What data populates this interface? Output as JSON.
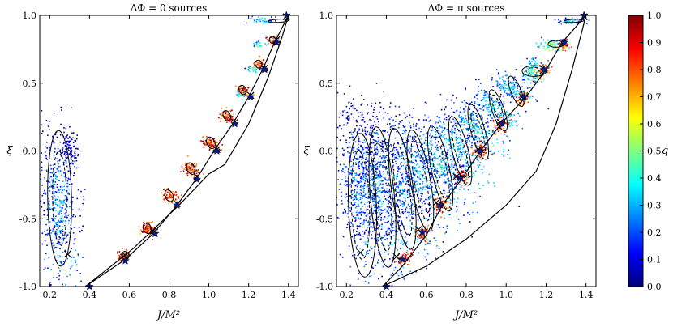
{
  "colormap": {
    "stops": [
      "#00007f",
      "#0000ff",
      "#007fff",
      "#00ffff",
      "#7fff7f",
      "#ffff00",
      "#ff7f00",
      "#ff0000",
      "#7f0000"
    ]
  },
  "chart_data": [
    {
      "type": "scatter",
      "title": "ΔΦ = 0 sources",
      "xlabel": "J/M²",
      "ylabel": "ξ",
      "xlim": [
        0.15,
        1.45
      ],
      "ylim": [
        -1.0,
        1.0
      ],
      "xticks": [
        "0.2",
        "0.4",
        "0.6",
        "0.8",
        "1.0",
        "1.2",
        "1.4"
      ],
      "yticks": [
        "-1.0",
        "-0.5",
        "0.0",
        "0.5",
        "1.0"
      ],
      "boundary_left": [
        [
          0.38,
          -1.0
        ],
        [
          0.62,
          -0.72
        ],
        [
          0.85,
          -0.4
        ],
        [
          1.0,
          -0.17
        ],
        [
          1.08,
          -0.1
        ],
        [
          1.2,
          0.2
        ],
        [
          1.3,
          0.55
        ],
        [
          1.37,
          0.85
        ],
        [
          1.4,
          1.0
        ]
      ],
      "boundary_right": [
        [
          0.38,
          -1.0
        ],
        [
          0.58,
          -0.8
        ],
        [
          0.72,
          -0.61
        ],
        [
          0.84,
          -0.4
        ],
        [
          0.94,
          -0.2
        ],
        [
          1.03,
          0.01
        ],
        [
          1.12,
          0.2
        ],
        [
          1.2,
          0.4
        ],
        [
          1.27,
          0.6
        ],
        [
          1.33,
          0.8
        ],
        [
          1.4,
          1.0
        ]
      ],
      "clusters": [
        {
          "x": 0.24,
          "y": -0.4,
          "sx": 0.05,
          "sy": 0.28,
          "q": 0.3,
          "n": 500,
          "tilt": 0.06,
          "mode": "broad"
        },
        {
          "x": 0.29,
          "y": 0.02,
          "sx": 0.025,
          "sy": 0.08,
          "q": 0.12,
          "n": 120,
          "tilt": 0.0,
          "mode": "broad"
        },
        {
          "x": 0.57,
          "y": -0.77,
          "sx": 0.015,
          "sy": 0.025,
          "q": 0.85,
          "n": 60,
          "tilt": 1.4,
          "mode": "tight"
        },
        {
          "x": 0.69,
          "y": -0.57,
          "sx": 0.015,
          "sy": 0.03,
          "q": 0.85,
          "n": 70,
          "tilt": 1.2,
          "mode": "tight"
        },
        {
          "x": 0.8,
          "y": -0.33,
          "sx": 0.016,
          "sy": 0.035,
          "q": 0.85,
          "n": 80,
          "tilt": 1.2,
          "mode": "tight"
        },
        {
          "x": 0.91,
          "y": -0.13,
          "sx": 0.016,
          "sy": 0.035,
          "q": 0.85,
          "n": 80,
          "tilt": 1.2,
          "mode": "tight"
        },
        {
          "x": 1.01,
          "y": 0.06,
          "sx": 0.015,
          "sy": 0.035,
          "q": 0.85,
          "n": 80,
          "tilt": 1.2,
          "mode": "tight"
        },
        {
          "x": 1.09,
          "y": 0.26,
          "sx": 0.014,
          "sy": 0.03,
          "q": 0.85,
          "n": 70,
          "tilt": 1.2,
          "mode": "tight"
        },
        {
          "x": 1.17,
          "y": 0.45,
          "sx": 0.013,
          "sy": 0.028,
          "q": 0.85,
          "n": 60,
          "tilt": 1.2,
          "mode": "tight"
        },
        {
          "x": 1.25,
          "y": 0.64,
          "sx": 0.013,
          "sy": 0.025,
          "q": 0.85,
          "n": 50,
          "tilt": 1.2,
          "mode": "tight"
        },
        {
          "x": 1.32,
          "y": 0.82,
          "sx": 0.012,
          "sy": 0.02,
          "q": 0.85,
          "n": 40,
          "tilt": 1.2,
          "mode": "tight"
        },
        {
          "x": 1.26,
          "y": 0.97,
          "sx": 0.03,
          "sy": 0.012,
          "q": 0.4,
          "n": 40,
          "tilt": 0.0,
          "mode": "broad"
        },
        {
          "x": 1.25,
          "y": 0.79,
          "sx": 0.015,
          "sy": 0.012,
          "q": 0.5,
          "n": 25,
          "tilt": 0.0,
          "mode": "broad"
        },
        {
          "x": 1.22,
          "y": 0.61,
          "sx": 0.015,
          "sy": 0.012,
          "q": 0.5,
          "n": 25,
          "tilt": 0.0,
          "mode": "broad"
        },
        {
          "x": 1.16,
          "y": 0.42,
          "sx": 0.015,
          "sy": 0.012,
          "q": 0.5,
          "n": 20,
          "tilt": 0.0,
          "mode": "broad"
        }
      ],
      "contours": [
        {
          "x": 0.25,
          "y": -0.35,
          "rx": 0.06,
          "ry": 0.5,
          "tilt": 0.05,
          "dashed": false
        },
        {
          "x": 0.25,
          "y": -0.35,
          "rx": 0.035,
          "ry": 0.35,
          "tilt": 0.05,
          "dashed": true
        },
        {
          "x": 0.58,
          "y": -0.77,
          "rx": 0.018,
          "ry": 0.03,
          "tilt": 1.2,
          "dashed": false
        },
        {
          "x": 0.69,
          "y": -0.57,
          "rx": 0.02,
          "ry": 0.04,
          "tilt": 1.2,
          "dashed": false
        },
        {
          "x": 0.8,
          "y": -0.33,
          "rx": 0.02,
          "ry": 0.045,
          "tilt": 1.2,
          "dashed": false
        },
        {
          "x": 0.91,
          "y": -0.13,
          "rx": 0.02,
          "ry": 0.045,
          "tilt": 1.2,
          "dashed": false
        },
        {
          "x": 1.01,
          "y": 0.06,
          "rx": 0.02,
          "ry": 0.045,
          "tilt": 1.2,
          "dashed": false
        },
        {
          "x": 1.09,
          "y": 0.26,
          "rx": 0.018,
          "ry": 0.04,
          "tilt": 1.2,
          "dashed": false
        },
        {
          "x": 1.17,
          "y": 0.45,
          "rx": 0.018,
          "ry": 0.035,
          "tilt": 1.2,
          "dashed": false
        },
        {
          "x": 1.25,
          "y": 0.64,
          "rx": 0.017,
          "ry": 0.03,
          "tilt": 1.2,
          "dashed": false
        },
        {
          "x": 1.32,
          "y": 0.82,
          "rx": 0.016,
          "ry": 0.025,
          "tilt": 1.2,
          "dashed": false
        },
        {
          "x": 1.35,
          "y": 0.96,
          "rx": 0.05,
          "ry": 0.012,
          "tilt": 0.15,
          "dashed": false
        }
      ],
      "crosses": [
        [
          0.29,
          -0.76
        ],
        [
          0.58,
          -0.77
        ],
        [
          0.72,
          -0.59
        ],
        [
          0.84,
          -0.39
        ],
        [
          0.94,
          -0.19
        ],
        [
          1.04,
          0.01
        ],
        [
          1.13,
          0.21
        ],
        [
          1.21,
          0.41
        ],
        [
          1.28,
          0.61
        ],
        [
          1.34,
          0.82
        ],
        [
          1.39,
          0.99
        ]
      ],
      "stars": [
        [
          0.4,
          -1.0
        ],
        [
          0.58,
          -0.81
        ],
        [
          0.73,
          -0.61
        ],
        [
          0.84,
          -0.4
        ],
        [
          0.94,
          -0.21
        ],
        [
          1.04,
          0.0
        ],
        [
          1.13,
          0.2
        ],
        [
          1.21,
          0.4
        ],
        [
          1.28,
          0.6
        ],
        [
          1.34,
          0.8
        ],
        [
          1.39,
          1.0
        ]
      ]
    },
    {
      "type": "scatter",
      "title": "ΔΦ = π sources",
      "xlabel": "J/M²",
      "ylabel": "ξ",
      "xlim": [
        0.15,
        1.45
      ],
      "ylim": [
        -1.0,
        1.0
      ],
      "xticks": [
        "0.2",
        "0.4",
        "0.6",
        "0.8",
        "1.0",
        "1.2",
        "1.4"
      ],
      "yticks": [
        "-1.0",
        "-0.5",
        "0.0",
        "0.5",
        "1.0"
      ],
      "boundary_left": [
        [
          0.38,
          -1.0
        ],
        [
          0.48,
          -0.85
        ],
        [
          0.6,
          -0.62
        ],
        [
          0.68,
          -0.4
        ],
        [
          0.78,
          -0.2
        ],
        [
          0.88,
          0.02
        ],
        [
          0.98,
          0.21
        ],
        [
          1.1,
          0.4
        ],
        [
          1.2,
          0.6
        ],
        [
          1.28,
          0.8
        ],
        [
          1.4,
          1.0
        ]
      ],
      "boundary_right": [
        [
          0.38,
          -1.0
        ],
        [
          0.6,
          -0.85
        ],
        [
          0.8,
          -0.65
        ],
        [
          1.0,
          -0.4
        ],
        [
          1.15,
          -0.15
        ],
        [
          1.25,
          0.2
        ],
        [
          1.33,
          0.6
        ],
        [
          1.4,
          1.0
        ]
      ],
      "clusters": [
        {
          "x": 0.26,
          "y": -0.3,
          "sx": 0.06,
          "sy": 0.3,
          "q": 0.28,
          "n": 550,
          "tilt": 0.15,
          "mode": "broad"
        },
        {
          "x": 0.36,
          "y": -0.3,
          "sx": 0.05,
          "sy": 0.3,
          "q": 0.32,
          "n": 450,
          "tilt": 0.3,
          "mode": "broad"
        },
        {
          "x": 0.45,
          "y": -0.22,
          "sx": 0.05,
          "sy": 0.28,
          "q": 0.3,
          "n": 400,
          "tilt": 0.45,
          "mode": "broad"
        },
        {
          "x": 0.55,
          "y": -0.15,
          "sx": 0.05,
          "sy": 0.24,
          "q": 0.34,
          "n": 350,
          "tilt": 0.55,
          "mode": "broad"
        },
        {
          "x": 0.65,
          "y": -0.07,
          "sx": 0.04,
          "sy": 0.2,
          "q": 0.36,
          "n": 300,
          "tilt": 0.65,
          "mode": "broad"
        },
        {
          "x": 0.75,
          "y": 0.04,
          "sx": 0.04,
          "sy": 0.16,
          "q": 0.38,
          "n": 260,
          "tilt": 0.75,
          "mode": "broad"
        },
        {
          "x": 0.84,
          "y": 0.18,
          "sx": 0.035,
          "sy": 0.13,
          "q": 0.38,
          "n": 220,
          "tilt": 0.85,
          "mode": "broad"
        },
        {
          "x": 0.93,
          "y": 0.33,
          "sx": 0.03,
          "sy": 0.1,
          "q": 0.4,
          "n": 180,
          "tilt": 0.95,
          "mode": "broad"
        },
        {
          "x": 1.02,
          "y": 0.47,
          "sx": 0.025,
          "sy": 0.08,
          "q": 0.4,
          "n": 150,
          "tilt": 1.05,
          "mode": "broad"
        },
        {
          "x": 1.13,
          "y": 0.59,
          "sx": 0.03,
          "sy": 0.04,
          "q": 0.5,
          "n": 120,
          "tilt": 1.3,
          "mode": "broad"
        },
        {
          "x": 1.22,
          "y": 0.79,
          "sx": 0.03,
          "sy": 0.02,
          "q": 0.55,
          "n": 80,
          "tilt": 0.0,
          "mode": "broad"
        },
        {
          "x": 1.32,
          "y": 0.96,
          "sx": 0.03,
          "sy": 0.012,
          "q": 0.4,
          "n": 50,
          "tilt": 0.0,
          "mode": "broad"
        },
        {
          "x": 0.48,
          "y": -0.78,
          "sx": 0.02,
          "sy": 0.03,
          "q": 0.85,
          "n": 60,
          "tilt": 1.0,
          "mode": "tight"
        },
        {
          "x": 0.58,
          "y": -0.6,
          "sx": 0.02,
          "sy": 0.03,
          "q": 0.85,
          "n": 60,
          "tilt": 1.0,
          "mode": "tight"
        },
        {
          "x": 0.67,
          "y": -0.39,
          "sx": 0.02,
          "sy": 0.03,
          "q": 0.85,
          "n": 60,
          "tilt": 1.0,
          "mode": "tight"
        },
        {
          "x": 0.77,
          "y": -0.19,
          "sx": 0.02,
          "sy": 0.03,
          "q": 0.85,
          "n": 55,
          "tilt": 1.0,
          "mode": "tight"
        },
        {
          "x": 0.87,
          "y": 0.01,
          "sx": 0.02,
          "sy": 0.03,
          "q": 0.85,
          "n": 50,
          "tilt": 1.0,
          "mode": "tight"
        },
        {
          "x": 0.97,
          "y": 0.2,
          "sx": 0.02,
          "sy": 0.03,
          "q": 0.85,
          "n": 50,
          "tilt": 1.0,
          "mode": "tight"
        },
        {
          "x": 1.08,
          "y": 0.39,
          "sx": 0.02,
          "sy": 0.025,
          "q": 0.85,
          "n": 45,
          "tilt": 1.0,
          "mode": "tight"
        },
        {
          "x": 1.18,
          "y": 0.59,
          "sx": 0.02,
          "sy": 0.025,
          "q": 0.85,
          "n": 45,
          "tilt": 1.0,
          "mode": "tight"
        },
        {
          "x": 1.29,
          "y": 0.79,
          "sx": 0.015,
          "sy": 0.02,
          "q": 0.85,
          "n": 40,
          "tilt": 1.0,
          "mode": "tight"
        }
      ],
      "contours": [
        {
          "x": 0.28,
          "y": -0.4,
          "rx": 0.07,
          "ry": 0.53,
          "tilt": 0.1,
          "dashed": false
        },
        {
          "x": 0.27,
          "y": -0.4,
          "rx": 0.045,
          "ry": 0.4,
          "tilt": 0.1,
          "dashed": true
        },
        {
          "x": 0.38,
          "y": -0.34,
          "rx": 0.06,
          "ry": 0.52,
          "tilt": 0.25,
          "dashed": false
        },
        {
          "x": 0.38,
          "y": -0.34,
          "rx": 0.04,
          "ry": 0.4,
          "tilt": 0.25,
          "dashed": true
        },
        {
          "x": 0.48,
          "y": -0.28,
          "rx": 0.055,
          "ry": 0.45,
          "tilt": 0.4,
          "dashed": false
        },
        {
          "x": 0.48,
          "y": -0.28,
          "rx": 0.035,
          "ry": 0.35,
          "tilt": 0.4,
          "dashed": true
        },
        {
          "x": 0.57,
          "y": -0.22,
          "rx": 0.05,
          "ry": 0.38,
          "tilt": 0.5,
          "dashed": false
        },
        {
          "x": 0.57,
          "y": -0.22,
          "rx": 0.03,
          "ry": 0.3,
          "tilt": 0.5,
          "dashed": true
        },
        {
          "x": 0.67,
          "y": -0.13,
          "rx": 0.045,
          "ry": 0.32,
          "tilt": 0.6,
          "dashed": false
        },
        {
          "x": 0.67,
          "y": -0.13,
          "rx": 0.03,
          "ry": 0.25,
          "tilt": 0.6,
          "dashed": true
        },
        {
          "x": 0.77,
          "y": 0.0,
          "rx": 0.04,
          "ry": 0.26,
          "tilt": 0.7,
          "dashed": false
        },
        {
          "x": 0.77,
          "y": 0.0,
          "rx": 0.025,
          "ry": 0.2,
          "tilt": 0.7,
          "dashed": true
        },
        {
          "x": 0.86,
          "y": 0.14,
          "rx": 0.035,
          "ry": 0.21,
          "tilt": 0.8,
          "dashed": false
        },
        {
          "x": 0.86,
          "y": 0.14,
          "rx": 0.02,
          "ry": 0.16,
          "tilt": 0.8,
          "dashed": true
        },
        {
          "x": 0.96,
          "y": 0.3,
          "rx": 0.03,
          "ry": 0.16,
          "tilt": 0.95,
          "dashed": false
        },
        {
          "x": 0.96,
          "y": 0.3,
          "rx": 0.018,
          "ry": 0.12,
          "tilt": 0.95,
          "dashed": true
        },
        {
          "x": 1.05,
          "y": 0.44,
          "rx": 0.025,
          "ry": 0.12,
          "tilt": 1.1,
          "dashed": false
        },
        {
          "x": 1.14,
          "y": 0.59,
          "rx": 0.06,
          "ry": 0.04,
          "tilt": 0.0,
          "dashed": false
        },
        {
          "x": 1.14,
          "y": 0.59,
          "rx": 0.04,
          "ry": 0.025,
          "tilt": 0.0,
          "dashed": true
        },
        {
          "x": 1.25,
          "y": 0.79,
          "rx": 0.04,
          "ry": 0.025,
          "tilt": 0.0,
          "dashed": false
        },
        {
          "x": 1.34,
          "y": 0.96,
          "rx": 0.05,
          "ry": 0.012,
          "tilt": 0.15,
          "dashed": false
        }
      ],
      "crosses": [
        [
          0.27,
          -0.75
        ],
        [
          0.45,
          -0.78
        ],
        [
          0.56,
          -0.58
        ],
        [
          0.65,
          -0.38
        ],
        [
          0.75,
          -0.19
        ],
        [
          0.86,
          0.01
        ],
        [
          0.97,
          0.21
        ],
        [
          1.08,
          0.4
        ],
        [
          1.19,
          0.6
        ],
        [
          1.29,
          0.8
        ],
        [
          1.39,
          0.99
        ]
      ],
      "stars": [
        [
          0.4,
          -1.0
        ],
        [
          0.48,
          -0.8
        ],
        [
          0.58,
          -0.6
        ],
        [
          0.67,
          -0.4
        ],
        [
          0.77,
          -0.2
        ],
        [
          0.87,
          0.0
        ],
        [
          0.98,
          0.2
        ],
        [
          1.09,
          0.4
        ],
        [
          1.19,
          0.6
        ],
        [
          1.29,
          0.8
        ],
        [
          1.39,
          1.0
        ]
      ]
    }
  ],
  "colorbar": {
    "label": "q",
    "ticks": [
      "0.0",
      "0.1",
      "0.2",
      "0.3",
      "0.4",
      "0.5",
      "0.6",
      "0.7",
      "0.8",
      "0.9",
      "1.0"
    ]
  }
}
